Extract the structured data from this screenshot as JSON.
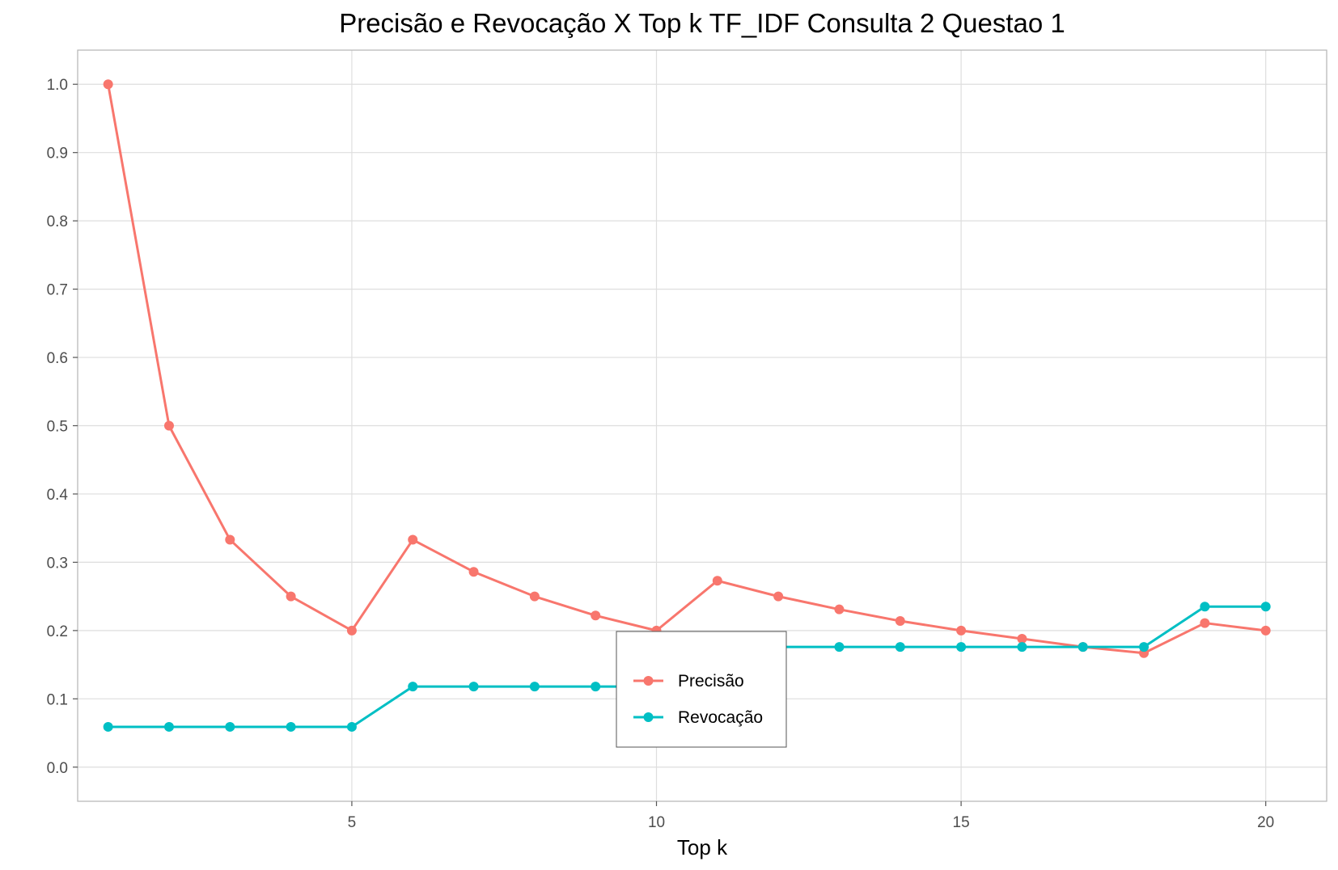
{
  "chart_data": {
    "type": "line",
    "title": "Precisão e Revocação X Top k TF_IDF Consulta 2 Questao 1",
    "xlabel": "Top k",
    "ylabel": "",
    "x": [
      1,
      2,
      3,
      4,
      5,
      6,
      7,
      8,
      9,
      10,
      11,
      12,
      13,
      14,
      15,
      16,
      17,
      18,
      19,
      20
    ],
    "xlim": [
      0.5,
      21
    ],
    "ylim": [
      -0.05,
      1.05
    ],
    "x_ticks": [
      "5",
      "10",
      "15",
      "20"
    ],
    "y_ticks": [
      "0.0",
      "0.1",
      "0.2",
      "0.3",
      "0.4",
      "0.5",
      "0.6",
      "0.7",
      "0.8",
      "0.9",
      "1.0"
    ],
    "grid": true,
    "legend_position": "center-bottom inside",
    "series": [
      {
        "name": "Precisão",
        "color": "#F8766D",
        "values": [
          1.0,
          0.5,
          0.333,
          0.25,
          0.2,
          0.333,
          0.286,
          0.25,
          0.222,
          0.2,
          0.273,
          0.25,
          0.231,
          0.214,
          0.2,
          0.188,
          0.176,
          0.167,
          0.211,
          0.2
        ]
      },
      {
        "name": "Revocação",
        "color": "#00BFC4",
        "values": [
          0.059,
          0.059,
          0.059,
          0.059,
          0.059,
          0.118,
          0.118,
          0.118,
          0.118,
          0.118,
          0.176,
          0.176,
          0.176,
          0.176,
          0.176,
          0.176,
          0.176,
          0.176,
          0.235,
          0.235
        ]
      }
    ]
  }
}
